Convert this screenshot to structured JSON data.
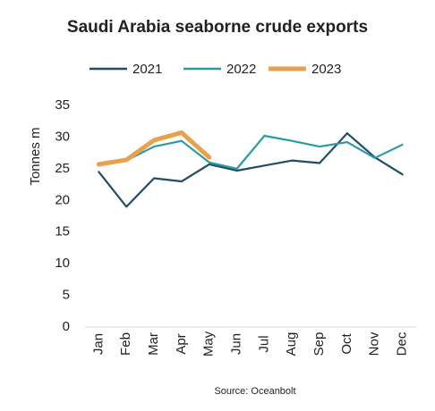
{
  "chart_data": {
    "type": "line",
    "title": "Saudi Arabia seaborne crude exports",
    "y_label": "Tonnes m",
    "source": "Source: Oceanbolt",
    "categories": [
      "Jan",
      "Feb",
      "Mar",
      "Apr",
      "May",
      "Jun",
      "Jul",
      "Aug",
      "Sep",
      "Oct",
      "Nov",
      "Dec"
    ],
    "series": [
      {
        "name": "2021",
        "color": "#1d4e63",
        "values": [
          24.5,
          19,
          23.5,
          23,
          25.7,
          24.7,
          25.5,
          26.3,
          25.9,
          30.6,
          26.8,
          24.1
        ]
      },
      {
        "name": "2022",
        "color": "#2a9aa6",
        "values": [
          25.5,
          26.3,
          28.5,
          29.4,
          26,
          25,
          30.2,
          29.4,
          28.5,
          29.2,
          26.7,
          28.8
        ]
      },
      {
        "name": "2023",
        "color": "#e8a24e",
        "values": [
          25.7,
          26.4,
          29.5,
          30.7,
          26.8,
          null,
          null,
          null,
          null,
          null,
          null,
          null
        ]
      }
    ],
    "ylim": [
      0,
      35
    ],
    "yticks": [
      0,
      5,
      10,
      15,
      20,
      25,
      30,
      35
    ],
    "grid": false,
    "legend": "top"
  }
}
